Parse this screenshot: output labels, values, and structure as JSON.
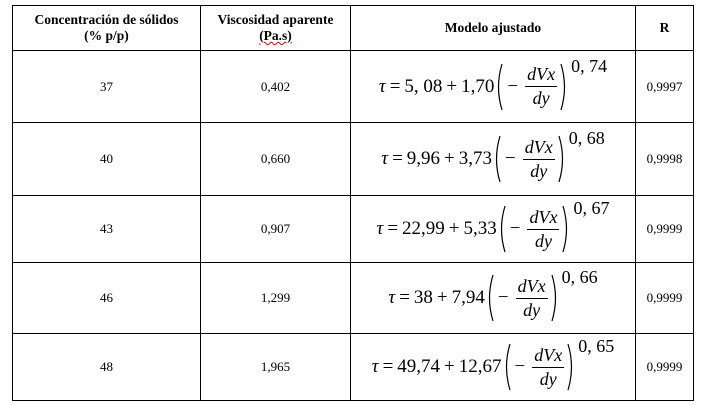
{
  "table": {
    "header": [
      [
        "Concentración de sólidos",
        "(% p/p)"
      ],
      [
        "Viscosidad aparente",
        "(Pa.s)"
      ],
      [
        "Modelo ajustado"
      ],
      [
        "R"
      ]
    ],
    "rows": [
      {
        "concentration": 37,
        "viscosity": "0,402",
        "formula": {
          "symbol": "τ",
          "equals": "=",
          "a": "5, 08",
          "plus": "+",
          "b": "1,70",
          "minus": "−",
          "num": "dVx",
          "den": "dy",
          "exp": "0, 74"
        },
        "r": "0,9997"
      },
      {
        "concentration": 40,
        "viscosity": "0,660",
        "formula": {
          "symbol": "τ",
          "equals": "=",
          "a": "9,96",
          "plus": "+",
          "b": "3,73",
          "minus": "−",
          "num": "dVx",
          "den": "dy",
          "exp": "0, 68"
        },
        "r": "0,9998"
      },
      {
        "concentration": 43,
        "viscosity": "0,907",
        "formula": {
          "symbol": "τ",
          "equals": "=",
          "a": "22,99",
          "plus": "+",
          "b": "5,33",
          "minus": "−",
          "num": "dVx",
          "den": "dy",
          "exp": "0, 67"
        },
        "r": "0,9999"
      },
      {
        "concentration": 46,
        "viscosity": "1,299",
        "formula": {
          "symbol": "τ",
          "equals": "=",
          "a": "38",
          "plus": "+",
          "b": "7,94",
          "minus": "−",
          "num": "dVx",
          "den": "dy",
          "exp": "0, 66"
        },
        "r": "0,9999"
      },
      {
        "concentration": 48,
        "viscosity": "1,965",
        "formula": {
          "symbol": "τ",
          "equals": "=",
          "a": "49,74",
          "plus": "+",
          "b": "12,67",
          "minus": "−",
          "num": "dVx",
          "den": "dy",
          "exp": "0, 65"
        },
        "r": "0,9999"
      }
    ]
  }
}
